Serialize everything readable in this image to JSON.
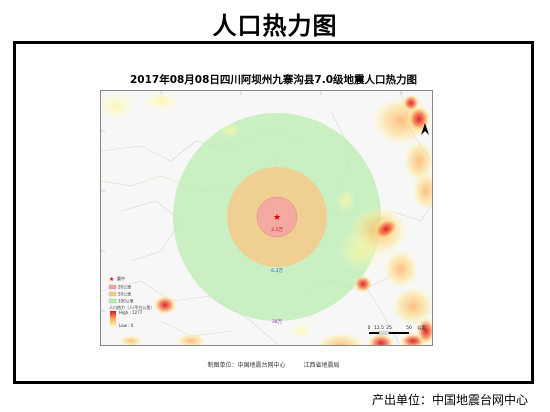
{
  "header": {
    "title": "人口热力图"
  },
  "map": {
    "title": "2017年08月08日四川阿坝州九寨沟县7.0级地震人口热力图",
    "epicenter_label": "2.1万",
    "rings": [
      {
        "radius_km": 20,
        "population_label": "2.1万",
        "color": "#f4a3a3"
      },
      {
        "radius_km": 50,
        "population_label": "6.3万",
        "color": "#f7c98a"
      },
      {
        "radius_km": 100,
        "population_label": "38万",
        "color": "#b9ecb0"
      }
    ],
    "mid_label": "6.3万",
    "outer_label": "38万",
    "legend": {
      "epicenter": "震中",
      "ring_20": "20公里",
      "ring_50": "50公里",
      "ring_100": "100公里",
      "heat_title": "人口热力（人/平方公里）",
      "high": "High : 1277",
      "low": "Low : 0"
    },
    "scale": {
      "ticks": [
        "0",
        "12.5",
        "25",
        "50"
      ],
      "unit": "公里"
    },
    "colors": {
      "heat_high": "#d7191c",
      "heat_mid": "#fdae61",
      "heat_low": "#ffffbf",
      "epicenter_star": "#e00000"
    }
  },
  "credits": {
    "maker_label": "制图单位：中国地震台网中心",
    "partner": "江西省地震局"
  },
  "footer": {
    "producer": "产出单位：中国地震台网中心"
  }
}
